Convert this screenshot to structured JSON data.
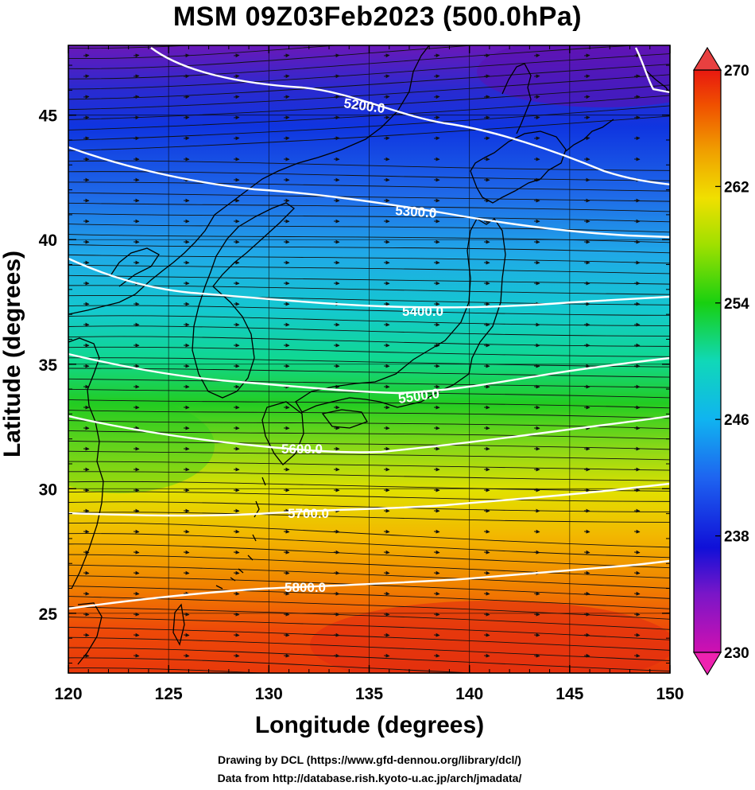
{
  "title": "MSM 09Z03Feb2023 (500.0hPa)",
  "x_axis": {
    "label": "Longitude (degrees)",
    "min": 120,
    "max": 150,
    "ticks": [
      "120",
      "125",
      "130",
      "135",
      "140",
      "145",
      "150"
    ]
  },
  "y_axis": {
    "label": "Latitude  (degrees)",
    "min": 22.6,
    "max": 47.8,
    "ticks": [
      "25",
      "30",
      "35",
      "40",
      "45"
    ]
  },
  "colorbar": {
    "min": 230,
    "max": 270,
    "ticks": [
      "230",
      "238",
      "246",
      "254",
      "262",
      "270"
    ]
  },
  "contours": [
    {
      "label": "5200.0"
    },
    {
      "label": "5300.0"
    },
    {
      "label": "5400.0"
    },
    {
      "label": "5500.0"
    },
    {
      "label": "5600.0"
    },
    {
      "label": "5700.0"
    },
    {
      "label": "5800.0"
    }
  ],
  "credits": {
    "line1": "Drawing by DCL (https://www.gfd-dennou.org/library/dcl/)",
    "line2": "Data from http://database.rish.kyoto-u.ac.jp/arch/jmadata/"
  }
}
